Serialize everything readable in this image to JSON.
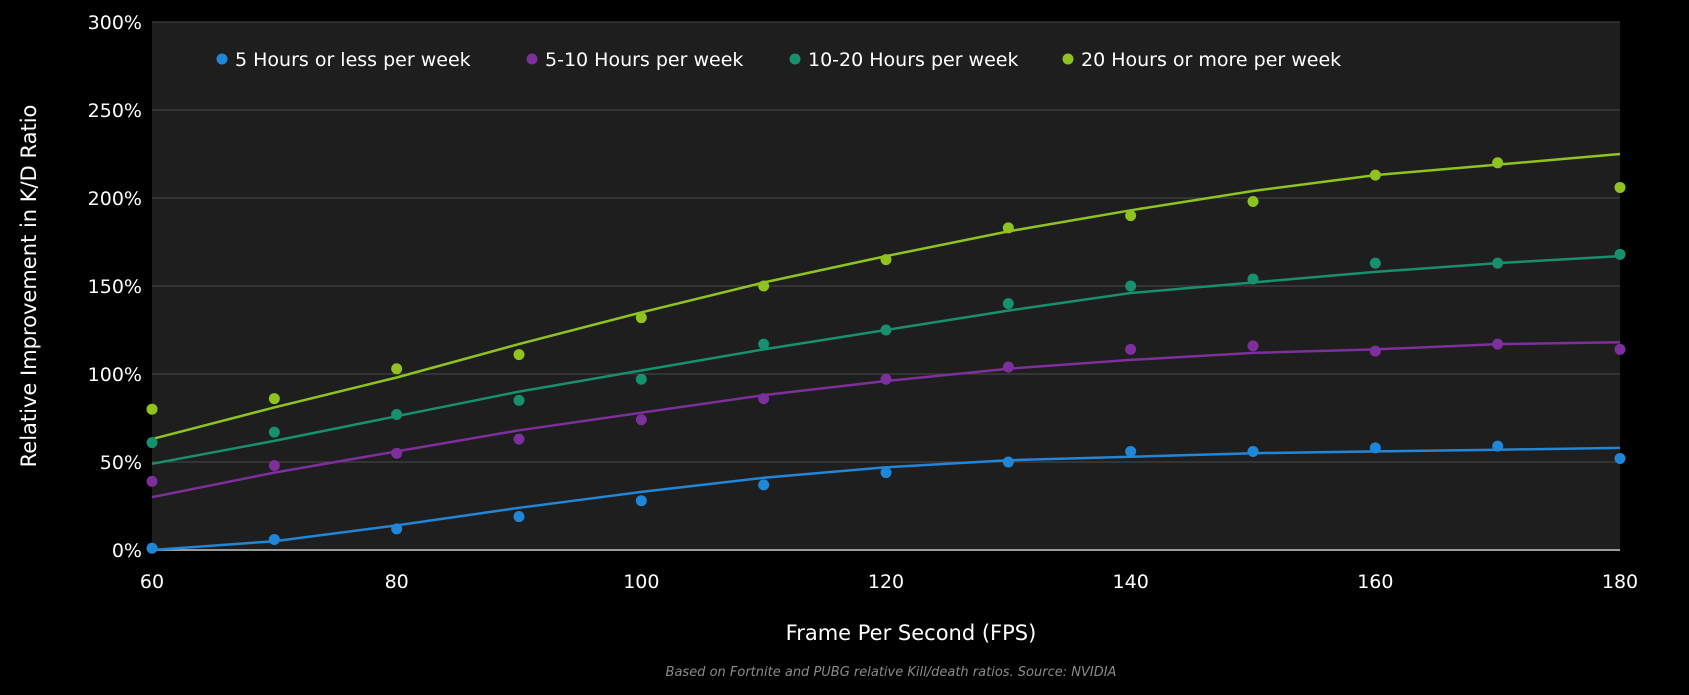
{
  "chart_data": {
    "type": "scatter",
    "title": "",
    "xlabel": "Frame Per Second (FPS)",
    "ylabel": "Relative Improvement in K/D Ratio",
    "source": "Based on Fortnite and PUBG relative Kill/death ratios. Source: NVIDIA",
    "xlim": [
      60,
      180
    ],
    "ylim": [
      0,
      300
    ],
    "x_ticks": [
      "60",
      "80",
      "100",
      "120",
      "140",
      "160",
      "180"
    ],
    "y_ticks": [
      "0%",
      "50%",
      "100%",
      "150%",
      "200%",
      "250%",
      "300%"
    ],
    "grid": "horizontal",
    "legend_position": "top",
    "x": [
      60,
      70,
      80,
      90,
      100,
      110,
      120,
      130,
      140,
      150,
      160,
      170,
      180
    ],
    "series": [
      {
        "name": "5 Hours or less per week",
        "color": "#1f86d8",
        "values": [
          1,
          6,
          12,
          19,
          28,
          37,
          44,
          50,
          56,
          56,
          58,
          59,
          52
        ],
        "trend": [
          0,
          5,
          14,
          24,
          33,
          41,
          47,
          51,
          53,
          55,
          56,
          57,
          58
        ]
      },
      {
        "name": "5-10 Hours per week",
        "color": "#7d2f9c",
        "values": [
          39,
          48,
          55,
          63,
          74,
          86,
          97,
          104,
          114,
          116,
          113,
          117,
          114
        ],
        "trend": [
          30,
          44,
          56,
          68,
          78,
          88,
          96,
          103,
          108,
          112,
          114,
          117,
          118
        ]
      },
      {
        "name": "10-20 Hours per week",
        "color": "#16906e",
        "values": [
          61,
          67,
          77,
          85,
          97,
          117,
          125,
          140,
          150,
          154,
          163,
          163,
          168
        ],
        "trend": [
          49,
          62,
          76,
          90,
          102,
          114,
          125,
          136,
          146,
          152,
          158,
          163,
          167
        ]
      },
      {
        "name": "20 Hours or more per week",
        "color": "#8fc31f",
        "values": [
          80,
          86,
          103,
          111,
          132,
          150,
          165,
          183,
          190,
          198,
          213,
          220,
          206
        ],
        "trend": [
          63,
          81,
          98,
          117,
          135,
          152,
          167,
          181,
          193,
          204,
          213,
          219,
          225
        ]
      }
    ]
  }
}
